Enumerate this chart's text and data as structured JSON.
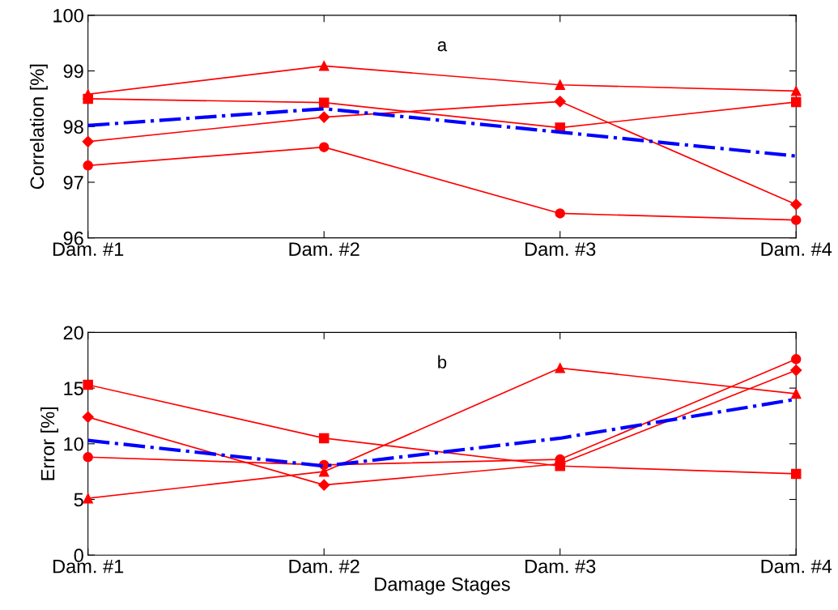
{
  "chart_data": [
    {
      "type": "line",
      "ylabel": "Correlation [%]",
      "annotations": [
        "a"
      ],
      "categories": [
        "Dam. #1",
        "Dam. #2",
        "Dam. #3",
        "Dam. #4"
      ],
      "ylim": [
        96,
        100
      ],
      "yticks": [
        96,
        97,
        98,
        99,
        100
      ],
      "grid": false,
      "legend": false,
      "series": [
        {
          "color": "#ff0000",
          "marker": "triangle",
          "line_style": "solid",
          "values": [
            98.58,
            99.09,
            98.75,
            98.64
          ]
        },
        {
          "color": "#ff0000",
          "marker": "square",
          "line_style": "solid",
          "values": [
            98.5,
            98.43,
            97.98,
            98.44
          ]
        },
        {
          "color": "#ff0000",
          "marker": "diamond",
          "line_style": "solid",
          "values": [
            97.73,
            98.17,
            98.45,
            96.6
          ]
        },
        {
          "color": "#ff0000",
          "marker": "circle",
          "line_style": "solid",
          "values": [
            97.3,
            97.63,
            96.44,
            96.32
          ]
        },
        {
          "color": "#0000ff",
          "marker": "none",
          "line_style": "dashdot",
          "values": [
            98.02,
            98.32,
            97.9,
            97.47
          ]
        }
      ]
    },
    {
      "type": "line",
      "ylabel": "Error [%]",
      "xlabel": "Damage Stages",
      "annotations": [
        "b"
      ],
      "categories": [
        "Dam. #1",
        "Dam. #2",
        "Dam. #3",
        "Dam. #4"
      ],
      "ylim": [
        0,
        20
      ],
      "yticks": [
        0,
        5,
        10,
        15,
        20
      ],
      "grid": false,
      "legend": false,
      "series": [
        {
          "color": "#ff0000",
          "marker": "square",
          "line_style": "solid",
          "values": [
            15.3,
            10.5,
            8.0,
            7.3
          ]
        },
        {
          "color": "#ff0000",
          "marker": "diamond",
          "line_style": "solid",
          "values": [
            12.4,
            6.3,
            8.2,
            16.6
          ]
        },
        {
          "color": "#ff0000",
          "marker": "circle",
          "line_style": "solid",
          "values": [
            8.8,
            8.1,
            8.6,
            17.6
          ]
        },
        {
          "color": "#ff0000",
          "marker": "triangle",
          "line_style": "solid",
          "values": [
            5.1,
            7.5,
            16.8,
            14.5
          ]
        },
        {
          "color": "#0000ff",
          "marker": "none",
          "line_style": "dashdot",
          "values": [
            10.3,
            8.0,
            10.5,
            14.0
          ]
        }
      ]
    }
  ]
}
